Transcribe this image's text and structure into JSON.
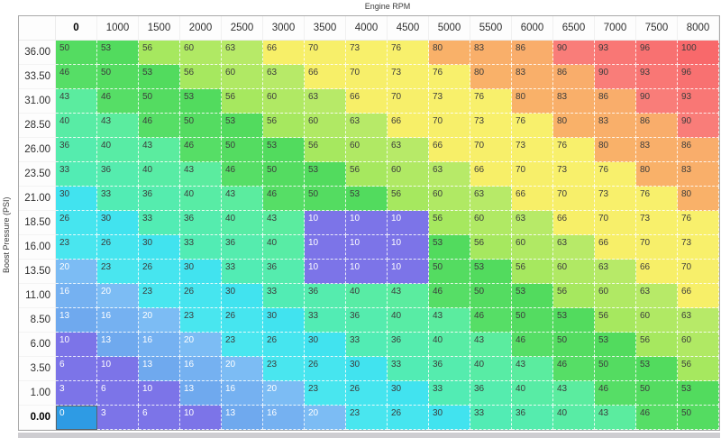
{
  "title": "Engine RPM",
  "y_axis_label": "Boost Pressure (PSI)",
  "chart_data": {
    "type": "heatmap",
    "title": "Engine RPM",
    "xlabel": "Engine RPM",
    "ylabel": "Boost Pressure (PSI)",
    "columns": [
      "0",
      "1000",
      "1500",
      "2000",
      "2500",
      "3000",
      "3500",
      "4000",
      "4500",
      "5000",
      "5500",
      "6000",
      "6500",
      "7000",
      "7500",
      "8000"
    ],
    "rows": [
      "36.00",
      "33.50",
      "31.00",
      "28.50",
      "26.00",
      "23.50",
      "21.00",
      "18.50",
      "16.00",
      "13.50",
      "11.00",
      "8.50",
      "6.00",
      "3.50",
      "1.00",
      "0.00"
    ],
    "values": [
      [
        50,
        53,
        56,
        60,
        63,
        66,
        70,
        73,
        76,
        80,
        83,
        86,
        90,
        93,
        96,
        100
      ],
      [
        46,
        50,
        53,
        56,
        60,
        63,
        66,
        70,
        73,
        76,
        80,
        83,
        86,
        90,
        93,
        96
      ],
      [
        43,
        46,
        50,
        53,
        56,
        60,
        63,
        66,
        70,
        73,
        76,
        80,
        83,
        86,
        90,
        93
      ],
      [
        40,
        43,
        46,
        50,
        53,
        56,
        60,
        63,
        66,
        70,
        73,
        76,
        80,
        83,
        86,
        90
      ],
      [
        36,
        40,
        43,
        46,
        50,
        53,
        56,
        60,
        63,
        66,
        70,
        73,
        76,
        80,
        83,
        86
      ],
      [
        33,
        36,
        40,
        43,
        46,
        50,
        53,
        56,
        60,
        63,
        66,
        70,
        73,
        76,
        80,
        83
      ],
      [
        30,
        33,
        36,
        40,
        43,
        46,
        50,
        53,
        56,
        60,
        63,
        66,
        70,
        73,
        76,
        80
      ],
      [
        26,
        30,
        33,
        36,
        40,
        43,
        10,
        10,
        10,
        56,
        60,
        63,
        66,
        70,
        73,
        76
      ],
      [
        23,
        26,
        30,
        33,
        36,
        40,
        10,
        10,
        10,
        53,
        56,
        60,
        63,
        66,
        70,
        73
      ],
      [
        20,
        23,
        26,
        30,
        33,
        36,
        10,
        10,
        10,
        50,
        53,
        56,
        60,
        63,
        66,
        70
      ],
      [
        16,
        20,
        23,
        26,
        30,
        33,
        36,
        40,
        43,
        46,
        50,
        53,
        56,
        60,
        63,
        66
      ],
      [
        13,
        16,
        20,
        23,
        26,
        30,
        33,
        36,
        40,
        43,
        46,
        50,
        53,
        56,
        60,
        63
      ],
      [
        10,
        13,
        16,
        20,
        23,
        26,
        30,
        33,
        36,
        40,
        43,
        46,
        50,
        53,
        56,
        60
      ],
      [
        6,
        10,
        13,
        16,
        20,
        23,
        26,
        30,
        33,
        36,
        40,
        43,
        46,
        50,
        53,
        56
      ],
      [
        3,
        6,
        10,
        13,
        16,
        20,
        23,
        26,
        30,
        33,
        36,
        40,
        43,
        46,
        50,
        53
      ],
      [
        0,
        3,
        6,
        10,
        13,
        16,
        20,
        23,
        26,
        30,
        33,
        36,
        40,
        43,
        46,
        50
      ]
    ],
    "selection": {
      "row_index": 15,
      "col_index": 0,
      "row_label": "0.00",
      "col_label": "0",
      "value": 0
    },
    "colors": {
      "selected_cell_bg": "#2e9be4",
      "text_dark": "#3c3c3c",
      "text_light": "#ffffff",
      "white_text_max_value": 20,
      "colormap_stops": [
        [
          0,
          "#7c74e8"
        ],
        [
          10,
          "#7c74e8"
        ],
        [
          13,
          "#6fa9ee"
        ],
        [
          20,
          "#7cbcf4"
        ],
        [
          23,
          "#49e6ef"
        ],
        [
          30,
          "#41e3ef"
        ],
        [
          33,
          "#52ecb4"
        ],
        [
          43,
          "#5bec9f"
        ],
        [
          46,
          "#56de66"
        ],
        [
          53,
          "#52db5e"
        ],
        [
          56,
          "#a6e85f"
        ],
        [
          63,
          "#b7ea68"
        ],
        [
          66,
          "#f7ef68"
        ],
        [
          76,
          "#f8f06c"
        ],
        [
          80,
          "#f9b169"
        ],
        [
          86,
          "#f9ad6b"
        ],
        [
          90,
          "#f97d79"
        ],
        [
          100,
          "#f8696b"
        ]
      ]
    }
  }
}
